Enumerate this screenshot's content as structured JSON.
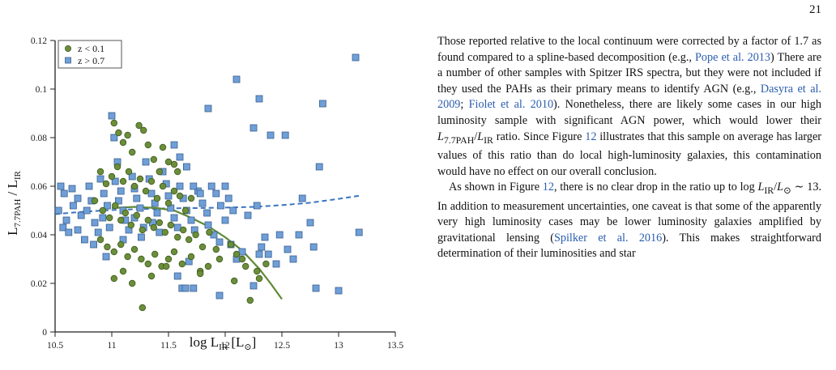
{
  "page": {
    "number": "21"
  },
  "chart_data": {
    "type": "scatter",
    "xlim": [
      10.5,
      13.5
    ],
    "ylim": [
      0,
      0.12
    ],
    "xticks": [
      "10.5",
      "11",
      "11.5",
      "12",
      "12.5",
      "13",
      "13.5"
    ],
    "yticks": [
      "0",
      "0.02",
      "0.04",
      "0.06",
      "0.08",
      "0.1",
      "0.12"
    ],
    "xtick_values": [
      10.5,
      11,
      11.5,
      12,
      12.5,
      13,
      13.5
    ],
    "ytick_values": [
      0,
      0.02,
      0.04,
      0.06,
      0.08,
      0.1,
      0.12
    ],
    "xlabel": "log L",
    "xlabel_sub": "IR",
    "xlabel_unit": " [L",
    "xlabel_unit_sub": "⊙",
    "xlabel_close": "]",
    "ylabel": "L",
    "ylabel_sub": "7.7PAH",
    "ylabel_sep": " / L",
    "ylabel_sub2": "IR",
    "legend_position": "top-left",
    "colors": {
      "low_z": "#6b8e3a",
      "high_z": "#6f9fd8",
      "low_z_fit": "#5e8a34",
      "high_z_fit": "#3a74c0"
    },
    "series": [
      {
        "name": "z < 0.1",
        "marker": "circle",
        "points": [
          [
            11.02,
            0.086
          ],
          [
            11.06,
            0.082
          ],
          [
            11.1,
            0.078
          ],
          [
            11.14,
            0.081
          ],
          [
            11.18,
            0.074
          ],
          [
            11.24,
            0.085
          ],
          [
            11.28,
            0.083
          ],
          [
            11.32,
            0.077
          ],
          [
            11.37,
            0.071
          ],
          [
            11.42,
            0.066
          ],
          [
            11.45,
            0.076
          ],
          [
            11.5,
            0.07
          ],
          [
            11.55,
            0.069
          ],
          [
            11.58,
            0.066
          ],
          [
            10.9,
            0.066
          ],
          [
            10.95,
            0.061
          ],
          [
            11.0,
            0.064
          ],
          [
            11.05,
            0.068
          ],
          [
            11.1,
            0.062
          ],
          [
            11.15,
            0.066
          ],
          [
            11.2,
            0.06
          ],
          [
            11.25,
            0.063
          ],
          [
            11.3,
            0.058
          ],
          [
            11.35,
            0.062
          ],
          [
            11.4,
            0.055
          ],
          [
            11.45,
            0.06
          ],
          [
            11.5,
            0.053
          ],
          [
            11.55,
            0.058
          ],
          [
            11.6,
            0.056
          ],
          [
            11.65,
            0.05
          ],
          [
            11.7,
            0.055
          ],
          [
            10.85,
            0.054
          ],
          [
            10.92,
            0.05
          ],
          [
            10.98,
            0.047
          ],
          [
            11.03,
            0.052
          ],
          [
            11.08,
            0.046
          ],
          [
            11.12,
            0.049
          ],
          [
            11.17,
            0.044
          ],
          [
            11.22,
            0.048
          ],
          [
            11.27,
            0.042
          ],
          [
            11.32,
            0.046
          ],
          [
            11.37,
            0.043
          ],
          [
            11.42,
            0.045
          ],
          [
            11.47,
            0.041
          ],
          [
            11.52,
            0.044
          ],
          [
            11.58,
            0.039
          ],
          [
            11.63,
            0.042
          ],
          [
            11.68,
            0.038
          ],
          [
            11.74,
            0.04
          ],
          [
            11.8,
            0.035
          ],
          [
            11.86,
            0.041
          ],
          [
            11.92,
            0.034
          ],
          [
            10.9,
            0.038
          ],
          [
            10.96,
            0.035
          ],
          [
            11.02,
            0.033
          ],
          [
            11.08,
            0.036
          ],
          [
            11.14,
            0.031
          ],
          [
            11.2,
            0.034
          ],
          [
            11.26,
            0.03
          ],
          [
            11.32,
            0.028
          ],
          [
            11.38,
            0.032
          ],
          [
            11.44,
            0.027
          ],
          [
            11.5,
            0.03
          ],
          [
            11.55,
            0.033
          ],
          [
            11.62,
            0.028
          ],
          [
            11.7,
            0.031
          ],
          [
            11.78,
            0.025
          ],
          [
            11.85,
            0.027
          ],
          [
            11.95,
            0.03
          ],
          [
            11.02,
            0.022
          ],
          [
            11.1,
            0.025
          ],
          [
            11.18,
            0.02
          ],
          [
            11.35,
            0.023
          ],
          [
            11.48,
            0.027
          ],
          [
            11.78,
            0.024
          ],
          [
            12.05,
            0.036
          ],
          [
            12.1,
            0.032
          ],
          [
            12.15,
            0.03
          ],
          [
            12.18,
            0.027
          ],
          [
            12.22,
            0.013
          ],
          [
            12.28,
            0.025
          ],
          [
            12.3,
            0.022
          ],
          [
            12.36,
            0.028
          ],
          [
            12.08,
            0.021
          ],
          [
            11.27,
            0.01
          ]
        ]
      },
      {
        "name": "z > 0.7",
        "marker": "square",
        "points": [
          [
            10.55,
            0.06
          ],
          [
            10.58,
            0.057
          ],
          [
            10.53,
            0.05
          ],
          [
            10.6,
            0.046
          ],
          [
            10.57,
            0.043
          ],
          [
            10.65,
            0.059
          ],
          [
            10.62,
            0.041
          ],
          [
            10.7,
            0.055
          ],
          [
            10.66,
            0.052
          ],
          [
            10.73,
            0.048
          ],
          [
            10.7,
            0.042
          ],
          [
            10.76,
            0.038
          ],
          [
            10.8,
            0.06
          ],
          [
            10.82,
            0.054
          ],
          [
            10.78,
            0.05
          ],
          [
            10.85,
            0.045
          ],
          [
            10.88,
            0.041
          ],
          [
            10.84,
            0.036
          ],
          [
            10.9,
            0.063
          ],
          [
            10.93,
            0.057
          ],
          [
            10.96,
            0.052
          ],
          [
            10.92,
            0.047
          ],
          [
            10.98,
            0.043
          ],
          [
            10.95,
            0.031
          ],
          [
            11.0,
            0.089
          ],
          [
            11.02,
            0.08
          ],
          [
            11.05,
            0.07
          ],
          [
            11.03,
            0.062
          ],
          [
            11.08,
            0.058
          ],
          [
            11.06,
            0.054
          ],
          [
            11.1,
            0.05
          ],
          [
            11.12,
            0.046
          ],
          [
            11.15,
            0.042
          ],
          [
            11.1,
            0.038
          ],
          [
            11.18,
            0.064
          ],
          [
            11.2,
            0.059
          ],
          [
            11.22,
            0.055
          ],
          [
            11.25,
            0.051
          ],
          [
            11.2,
            0.047
          ],
          [
            11.28,
            0.043
          ],
          [
            11.26,
            0.039
          ],
          [
            11.3,
            0.07
          ],
          [
            11.33,
            0.063
          ],
          [
            11.35,
            0.057
          ],
          [
            11.38,
            0.053
          ],
          [
            11.4,
            0.049
          ],
          [
            11.36,
            0.045
          ],
          [
            11.42,
            0.041
          ],
          [
            11.45,
            0.066
          ],
          [
            11.48,
            0.061
          ],
          [
            11.5,
            0.056
          ],
          [
            11.52,
            0.051
          ],
          [
            11.55,
            0.047
          ],
          [
            11.58,
            0.043
          ],
          [
            11.6,
            0.06
          ],
          [
            11.63,
            0.055
          ],
          [
            11.66,
            0.05
          ],
          [
            11.7,
            0.046
          ],
          [
            11.73,
            0.042
          ],
          [
            11.76,
            0.058
          ],
          [
            11.8,
            0.053
          ],
          [
            11.84,
            0.049
          ],
          [
            11.88,
            0.06
          ],
          [
            11.92,
            0.057
          ],
          [
            11.96,
            0.052
          ],
          [
            12.0,
            0.06
          ],
          [
            12.03,
            0.055
          ],
          [
            12.07,
            0.05
          ],
          [
            11.55,
            0.077
          ],
          [
            11.6,
            0.072
          ],
          [
            11.66,
            0.068
          ],
          [
            11.72,
            0.06
          ],
          [
            11.78,
            0.057
          ],
          [
            11.85,
            0.044
          ],
          [
            11.9,
            0.04
          ],
          [
            11.95,
            0.037
          ],
          [
            12.0,
            0.046
          ],
          [
            12.05,
            0.036
          ],
          [
            12.1,
            0.03
          ],
          [
            12.15,
            0.033
          ],
          [
            12.2,
            0.048
          ],
          [
            12.28,
            0.052
          ],
          [
            12.32,
            0.035
          ],
          [
            12.35,
            0.039
          ],
          [
            11.58,
            0.023
          ],
          [
            11.62,
            0.018
          ],
          [
            11.65,
            0.018
          ],
          [
            11.72,
            0.018
          ],
          [
            11.68,
            0.029
          ],
          [
            11.85,
            0.092
          ],
          [
            12.1,
            0.104
          ],
          [
            12.3,
            0.096
          ],
          [
            12.25,
            0.084
          ],
          [
            12.4,
            0.081
          ],
          [
            12.53,
            0.081
          ],
          [
            12.86,
            0.094
          ],
          [
            12.83,
            0.068
          ],
          [
            12.68,
            0.055
          ],
          [
            12.78,
            0.035
          ],
          [
            12.8,
            0.018
          ],
          [
            12.75,
            0.045
          ],
          [
            12.65,
            0.04
          ],
          [
            12.6,
            0.03
          ],
          [
            12.55,
            0.034
          ],
          [
            12.48,
            0.04
          ],
          [
            12.45,
            0.028
          ],
          [
            12.38,
            0.032
          ],
          [
            11.95,
            0.015
          ],
          [
            12.25,
            0.019
          ],
          [
            12.3,
            0.032
          ],
          [
            13.0,
            0.017
          ],
          [
            13.15,
            0.113
          ],
          [
            13.18,
            0.041
          ]
        ]
      }
    ],
    "fits": [
      {
        "name": "z > 0.7 trend",
        "style": "dashed",
        "x": [
          10.5,
          10.75,
          11.0,
          11.25,
          11.5,
          11.75,
          12.0,
          12.25,
          12.5,
          12.75,
          13.0,
          13.2
        ],
        "y": [
          0.0485,
          0.0495,
          0.0502,
          0.0506,
          0.0509,
          0.051,
          0.0512,
          0.0515,
          0.0522,
          0.0532,
          0.0548,
          0.0562
        ]
      },
      {
        "name": "z < 0.1 trend",
        "style": "solid",
        "x": [
          11.0,
          11.2,
          11.4,
          11.55,
          11.7,
          11.85,
          12.0,
          12.15,
          12.3,
          12.4,
          12.5
        ],
        "y": [
          0.051,
          0.0515,
          0.051,
          0.05,
          0.047,
          0.0435,
          0.039,
          0.0335,
          0.026,
          0.02,
          0.0135
        ]
      }
    ]
  },
  "body": {
    "p1": {
      "s1": "Those reported relative to the local continuum were corrected by a factor of 1.7 as found compared to a spline-based decomposition (e.g., ",
      "c1": "Pope et al. 2013",
      "s2": ") There are a number of other samples with Spitzer IRS spectra, but they were not included if they used the PAHs as their primary means to identify AGN (e.g., ",
      "c2": "Dasyra et al. 2009",
      "s3": "; ",
      "c3": "Fiolet et al. 2010",
      "s4": "). Nonetheless, there are likely some cases in our high luminosity sample with significant AGN power, which would lower their ",
      "m1": "L",
      "m1sub": "7.7PAH",
      "m1sep": "/",
      "m2": "L",
      "m2sub": "IR",
      "s5": " ratio. Since Figure ",
      "f1": "12",
      "s6": " illustrates that this sample on average has larger values of this ratio than do local high-luminosity galaxies, this contamination would have no effect on our overall conclusion."
    },
    "p2": {
      "s1": "As shown in Figure ",
      "f1": "12",
      "s2": ", there is no clear drop in the ratio up to log ",
      "m1": "L",
      "m1sub": "IR",
      "m1sep": "/",
      "m2": "L",
      "m2sub": "⊙",
      "m3": " ∼ 13",
      "s3": ". In addition to measurement uncertainties, one caveat is that some of the apparently very high luminosity cases may be lower luminosity galaxies amplified by gravitational lensing (",
      "c1": "Spilker et al. 2016",
      "s4": "). This makes straightforward determination of their luminosities and star"
    }
  }
}
